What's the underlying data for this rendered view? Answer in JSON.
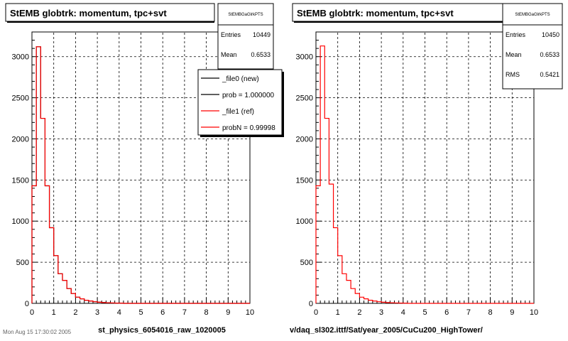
{
  "chart_data": [
    {
      "type": "line",
      "title": "StEMB globtrk: momentum, tpc+svt",
      "xlabel": "st_physics_6054016_raw_1020005",
      "xlim": [
        0,
        10
      ],
      "ylim": [
        0,
        3300
      ],
      "grid": true,
      "x_ticks": [
        "0",
        "1",
        "2",
        "3",
        "4",
        "5",
        "6",
        "7",
        "8",
        "9",
        "10"
      ],
      "y_ticks": [
        "0",
        "500",
        "1000",
        "1500",
        "2000",
        "2500",
        "3000"
      ],
      "bin_edges": [
        0.0,
        0.2,
        0.4,
        0.6,
        0.8,
        1.0,
        1.2,
        1.4,
        1.6,
        1.8,
        2.0,
        2.2,
        2.4,
        2.6,
        2.8,
        3.0,
        3.2,
        3.4,
        3.6,
        3.8,
        4.0,
        4.2
      ],
      "series": [
        {
          "name": "_file0 (new)",
          "color": "#000000",
          "values": [
            1430,
            3120,
            2250,
            1430,
            920,
            580,
            360,
            280,
            180,
            120,
            75,
            55,
            38,
            28,
            20,
            14,
            10,
            7,
            5,
            3,
            2
          ]
        },
        {
          "name": "_file1 (ref)",
          "color": "#ff0000",
          "values": [
            1430,
            3120,
            2250,
            1430,
            920,
            580,
            360,
            280,
            180,
            120,
            75,
            55,
            38,
            28,
            20,
            14,
            10,
            7,
            5,
            3,
            2
          ]
        }
      ],
      "stats": {
        "title": "StEMBGaGlrkPTS",
        "rows": [
          {
            "label": "Entries",
            "value": "10449"
          },
          {
            "label": "Mean",
            "value": "0.6533"
          }
        ]
      },
      "legend": {
        "placement": "top-right",
        "entries": [
          {
            "label": "_file0 (new)",
            "color": "#000000"
          },
          {
            "label": "prob = 1.000000",
            "color": "#000000"
          },
          {
            "label": "_file1 (ref)",
            "color": "#ff0000"
          },
          {
            "label": "probN = 0.99998",
            "color": "#ff0000"
          }
        ]
      },
      "footer": "Mon Aug 15 17:30:02 2005"
    },
    {
      "type": "line",
      "title": "StEMB globtrk: momentum, tpc+svt",
      "xlabel": "v/daq_sl302.ittf/Sat/year_2005/CuCu200_HighTower/",
      "xlim": [
        0,
        10
      ],
      "ylim": [
        0,
        3300
      ],
      "grid": true,
      "x_ticks": [
        "0",
        "1",
        "2",
        "3",
        "4",
        "5",
        "6",
        "7",
        "8",
        "9",
        "10"
      ],
      "y_ticks": [
        "0",
        "500",
        "1000",
        "1500",
        "2000",
        "2500",
        "3000"
      ],
      "bin_edges": [
        0.0,
        0.2,
        0.4,
        0.6,
        0.8,
        1.0,
        1.2,
        1.4,
        1.6,
        1.8,
        2.0,
        2.2,
        2.4,
        2.6,
        2.8,
        3.0,
        3.2,
        3.4,
        3.6,
        3.8,
        4.0,
        4.2
      ],
      "series": [
        {
          "name": "",
          "color": "#ff0000",
          "values": [
            1430,
            3130,
            2250,
            1450,
            920,
            580,
            360,
            280,
            180,
            120,
            75,
            55,
            38,
            28,
            20,
            14,
            10,
            7,
            5,
            3,
            2
          ]
        }
      ],
      "stats": {
        "title": "StEMBGaGlrkPTS",
        "rows": [
          {
            "label": "Entries",
            "value": "10450"
          },
          {
            "label": "Mean",
            "value": "0.6533"
          },
          {
            "label": "RMS",
            "value": "0.5421"
          }
        ]
      }
    }
  ]
}
